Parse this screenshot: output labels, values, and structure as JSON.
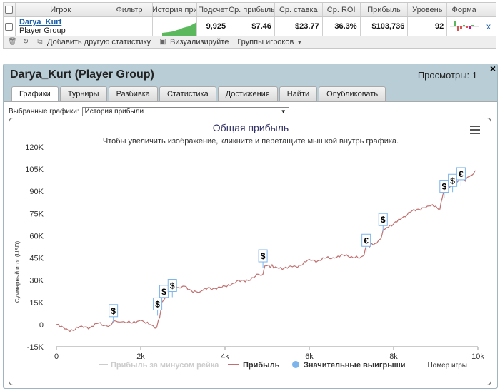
{
  "table": {
    "headers": [
      "Игрок",
      "Фильтр",
      "История при",
      "Подсчет",
      "Ср. прибыль",
      "Ср. ставка",
      "Ср. ROI",
      "Прибыль",
      "Уровень",
      "Форма"
    ],
    "row": {
      "player_name": "Darya_Kurt",
      "player_group": "Player Group",
      "filter": "",
      "count": "9,925",
      "avg_profit": "$7.46",
      "avg_stake": "$23.77",
      "avg_roi": "36.3%",
      "profit": "$103,736",
      "level": "92",
      "close": "x"
    }
  },
  "toolbar": {
    "add_stats": "Добавить другую статистику",
    "visualize": "Визуализируйте",
    "player_groups": "Группы игроков"
  },
  "panel": {
    "title": "Darya_Kurt (Player Group)",
    "views": "Просмотры: 1",
    "close": "×",
    "tabs": [
      "Графики",
      "Турниры",
      "Разбивка",
      "Статистика",
      "Достижения",
      "Найти",
      "Опубликовать"
    ],
    "active_tab": 0,
    "select_label": "Выбранные графики:",
    "select_value": "История прибыли"
  },
  "chart_data": {
    "type": "line",
    "title": "Общая прибыль",
    "subtitle": "Чтобы увеличить изображение, кликните и перетащите мышкой внутрь графика.",
    "xlabel": "Номер игры",
    "ylabel": "Суммарный итог (USD)",
    "xlim": [
      0,
      10000
    ],
    "ylim": [
      -15000,
      120000
    ],
    "x_ticks": [
      "0",
      "2k",
      "4k",
      "6k",
      "8k",
      "10k"
    ],
    "y_ticks": [
      "-15K",
      "0",
      "15K",
      "30K",
      "45K",
      "60K",
      "75K",
      "90K",
      "105K",
      "120K"
    ],
    "grid": false,
    "legend_position": "bottom",
    "colors": {
      "profit": "#c07070",
      "rake": "#cccccc",
      "wins": "#7cb5ec",
      "title": "#333366",
      "accent": "#1d5fa8"
    },
    "series": [
      {
        "name": "Прибыль за минусом рейка",
        "values": [],
        "visible": false
      },
      {
        "name": "Прибыль",
        "x": [
          0,
          200,
          400,
          600,
          800,
          1000,
          1200,
          1300,
          1340,
          1600,
          1800,
          2000,
          2200,
          2300,
          2380,
          2450,
          2500,
          2580,
          2650,
          2700,
          2800,
          2900,
          3000,
          3200,
          3400,
          3600,
          3800,
          4000,
          4200,
          4400,
          4600,
          4800,
          4900,
          4950,
          5200,
          5400,
          5600,
          5800,
          6000,
          6200,
          6400,
          6600,
          6800,
          7000,
          7200,
          7300,
          7350,
          7600,
          7700,
          7750,
          8000,
          8200,
          8400,
          8600,
          8800,
          9000,
          9100,
          9150,
          9200,
          9250,
          9300,
          9400,
          9450,
          9500,
          9600,
          9700,
          9800,
          9900,
          9950
        ],
        "values": [
          0,
          -3000,
          -4000,
          -1000,
          -2000,
          1000,
          -1000,
          0,
          2000,
          2000,
          1000,
          3000,
          0,
          -1000,
          -2000,
          5000,
          15000,
          18000,
          25000,
          29000,
          28000,
          25000,
          26000,
          23000,
          22000,
          25000,
          24000,
          26000,
          28000,
          30000,
          30000,
          34000,
          34000,
          40000,
          39000,
          38000,
          39000,
          40000,
          44000,
          43000,
          45000,
          45000,
          47000,
          46000,
          45000,
          47000,
          53000,
          55000,
          58000,
          64000,
          68000,
          72000,
          76000,
          78000,
          80000,
          80000,
          78000,
          85000,
          90000,
          95000,
          92000,
          95000,
          98000,
          96000,
          99000,
          97000,
          100000,
          102000,
          104000
        ]
      }
    ],
    "significant_wins": [
      {
        "x": 1350,
        "y": 1500,
        "currency": "$"
      },
      {
        "x": 2400,
        "y": 6000,
        "currency": "$"
      },
      {
        "x": 2550,
        "y": 14500,
        "currency": "$"
      },
      {
        "x": 2750,
        "y": 18500,
        "currency": "$"
      },
      {
        "x": 4900,
        "y": 38500,
        "currency": "$"
      },
      {
        "x": 7350,
        "y": 49000,
        "currency": "€"
      },
      {
        "x": 7750,
        "y": 63000,
        "currency": "$"
      },
      {
        "x": 9200,
        "y": 85500,
        "currency": "$"
      },
      {
        "x": 9400,
        "y": 89500,
        "currency": "$"
      },
      {
        "x": 9600,
        "y": 94000,
        "currency": "€"
      }
    ],
    "legend": [
      {
        "label": "Прибыль за минусом рейка",
        "color": "#cccccc",
        "active": false
      },
      {
        "label": "Прибыль",
        "color": "#c07070",
        "active": true
      },
      {
        "label": "Значительные выигрыши",
        "color": "#7cb5ec",
        "active": true
      }
    ]
  }
}
